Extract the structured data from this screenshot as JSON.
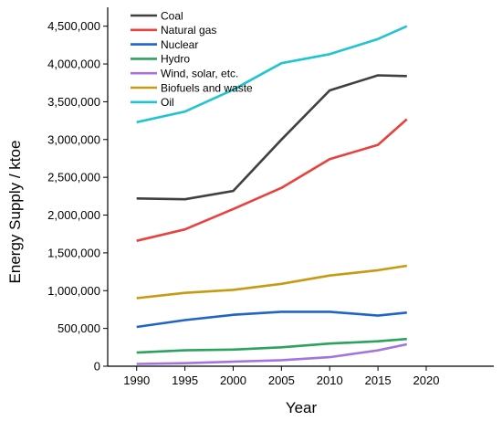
{
  "chart_data": {
    "type": "line",
    "title": "",
    "xlabel": "Year",
    "ylabel": "Energy Supply / ktoe",
    "xlim": [
      1987,
      2027
    ],
    "ylim": [
      0,
      4750000
    ],
    "xticks": [
      1990,
      1995,
      2000,
      2005,
      2010,
      2015,
      2020
    ],
    "yticks": [
      0,
      500000,
      1000000,
      1500000,
      2000000,
      2500000,
      3000000,
      3500000,
      4000000,
      4500000
    ],
    "xtick_labels": [
      "1990",
      "1995",
      "2000",
      "2005",
      "2010",
      "2015",
      "2020"
    ],
    "ytick_labels": [
      "0",
      "500,000",
      "1,000,000",
      "1,500,000",
      "2,000,000",
      "2,500,000",
      "3,000,000",
      "3,500,000",
      "4,000,000",
      "4,500,000"
    ],
    "x": [
      1990,
      1995,
      2000,
      2005,
      2010,
      2015,
      2018
    ],
    "grid": false,
    "legend_position": "top-left",
    "series": [
      {
        "name": "Coal",
        "color": "#404040",
        "values": [
          2220000,
          2210000,
          2320000,
          3000000,
          3650000,
          3850000,
          3840000
        ]
      },
      {
        "name": "Natural gas",
        "color": "#e8413e",
        "values": [
          1660000,
          1810000,
          2080000,
          2360000,
          2740000,
          2930000,
          3270000
        ]
      },
      {
        "name": "Nuclear",
        "color": "#1f64c8",
        "values": [
          520000,
          610000,
          680000,
          720000,
          720000,
          670000,
          710000
        ]
      },
      {
        "name": "Hydro",
        "color": "#2ca25f",
        "values": [
          180000,
          210000,
          220000,
          250000,
          300000,
          330000,
          360000
        ]
      },
      {
        "name": "Wind, solar, etc.",
        "color": "#a374e0",
        "values": [
          30000,
          40000,
          60000,
          80000,
          120000,
          210000,
          290000
        ]
      },
      {
        "name": "Biofuels and waste",
        "color": "#c89a12",
        "values": [
          900000,
          970000,
          1010000,
          1090000,
          1200000,
          1270000,
          1330000
        ]
      },
      {
        "name": "Oil",
        "color": "#21c4d0",
        "values": [
          3230000,
          3370000,
          3660000,
          4010000,
          4130000,
          4330000,
          4500000
        ]
      }
    ]
  }
}
